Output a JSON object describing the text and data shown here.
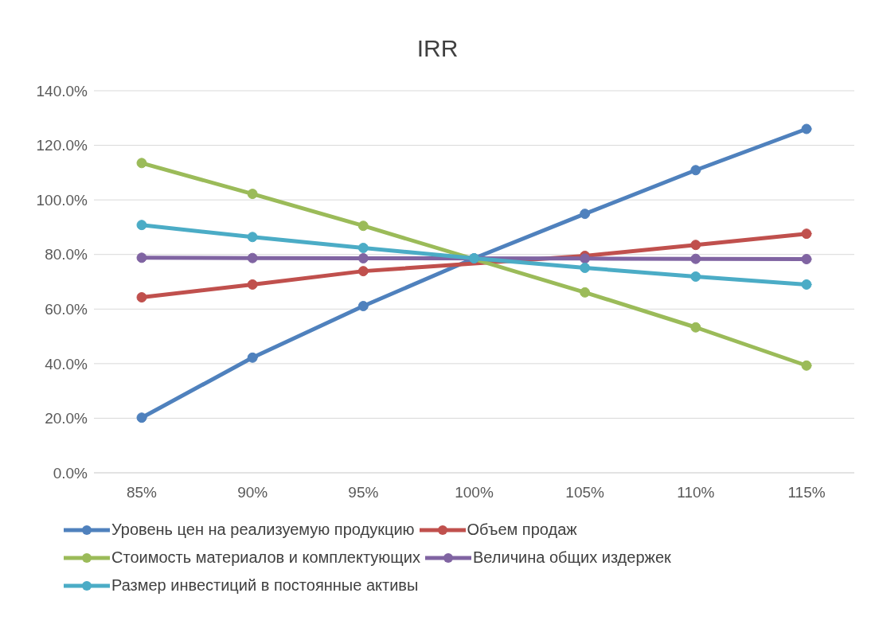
{
  "chart_data": {
    "type": "line",
    "title": "IRR",
    "categories": [
      "85%",
      "90%",
      "95%",
      "100%",
      "105%",
      "110%",
      "115%"
    ],
    "series": [
      {
        "name": "Уровень цен на реализуемую продукцию",
        "color": "#4f81bd",
        "values": [
          20.2,
          42.2,
          61.1,
          78.6,
          94.9,
          110.9,
          126.0
        ]
      },
      {
        "name": "Объем продаж",
        "color": "#c0504d",
        "values": [
          64.3,
          69.0,
          73.9,
          null,
          79.5,
          83.5,
          87.6
        ]
      },
      {
        "name": "Стоимость материалов и комплектующих",
        "color": "#9bbb59",
        "values": [
          113.5,
          102.2,
          90.5,
          null,
          66.1,
          53.3,
          39.3
        ]
      },
      {
        "name": "Величина общих издержек",
        "color": "#8064a2",
        "values": [
          78.8,
          78.7,
          78.6,
          null,
          78.5,
          78.4,
          78.3
        ]
      },
      {
        "name": "Размер инвестиций в постоянные активы",
        "color": "#4bacc6",
        "values": [
          90.8,
          86.4,
          82.4,
          78.6,
          75.1,
          71.9,
          69.0
        ]
      }
    ],
    "ylim": [
      0,
      140
    ],
    "yticks": [
      {
        "value": 0,
        "label": "0.0%"
      },
      {
        "value": 20,
        "label": "20.0%"
      },
      {
        "value": 40,
        "label": "40.0%"
      },
      {
        "value": 60,
        "label": "60.0%"
      },
      {
        "value": 80,
        "label": "80.0%"
      },
      {
        "value": 100,
        "label": "100.0%"
      },
      {
        "value": 120,
        "label": "120.0%"
      },
      {
        "value": 140,
        "label": "140.0%"
      }
    ],
    "grid": "y",
    "legend": "bottom",
    "marker": "circle",
    "line_style": "solid"
  }
}
